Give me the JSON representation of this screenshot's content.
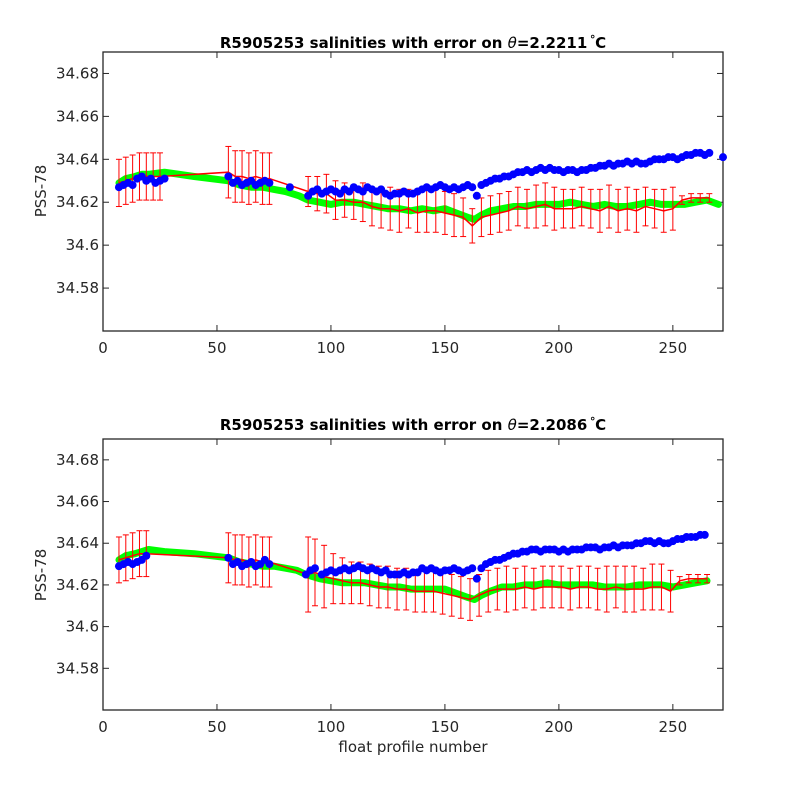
{
  "chart_data": [
    {
      "type": "scatter",
      "title": "R5905253 salinities with error on θ=2.2211°C",
      "title_prefix": "R5905253 salinities with error on ",
      "title_theta": "θ",
      "title_value": "=2.2211",
      "title_unit": "C",
      "ylabel": "PSS-78",
      "xlabel": "",
      "xlim": [
        0,
        272
      ],
      "ylim": [
        34.56,
        34.69
      ],
      "xticks": [
        "0",
        "50",
        "100",
        "150",
        "200",
        "250"
      ],
      "xtick_values": [
        0,
        50,
        100,
        150,
        200,
        250
      ],
      "yticks": [
        "34.58",
        "34.6",
        "34.62",
        "34.64",
        "34.66",
        "34.68"
      ],
      "ytick_values": [
        34.58,
        34.6,
        34.62,
        34.64,
        34.66,
        34.68
      ],
      "grid": false,
      "colors": {
        "float": "#0000ff",
        "calibrated": "#ff0000",
        "mapped": "#00ff00"
      },
      "float_salinity": {
        "x": [
          7,
          9,
          11,
          13,
          15,
          17,
          19,
          21,
          23,
          25,
          27,
          55,
          57,
          59,
          61,
          63,
          65,
          67,
          69,
          71,
          73,
          82,
          90,
          92,
          94,
          96,
          98,
          100,
          102,
          104,
          106,
          108,
          110,
          112,
          114,
          116,
          118,
          120,
          122,
          124,
          126,
          128,
          130,
          132,
          134,
          136,
          138,
          140,
          142,
          144,
          146,
          148,
          150,
          152,
          154,
          156,
          158,
          160,
          162,
          164,
          166,
          168,
          170,
          172,
          174,
          176,
          178,
          180,
          182,
          184,
          186,
          188,
          190,
          192,
          194,
          196,
          198,
          200,
          202,
          204,
          206,
          208,
          210,
          212,
          214,
          216,
          218,
          220,
          222,
          224,
          226,
          228,
          230,
          232,
          234,
          236,
          238,
          240,
          242,
          244,
          246,
          248,
          250,
          252,
          254,
          256,
          258,
          260,
          262,
          264,
          266,
          272
        ],
        "y": [
          34.627,
          34.628,
          34.629,
          34.628,
          34.631,
          34.632,
          34.63,
          34.631,
          34.629,
          34.63,
          34.631,
          34.632,
          34.629,
          34.63,
          34.628,
          34.629,
          34.63,
          34.628,
          34.629,
          34.63,
          34.629,
          34.627,
          34.623,
          34.625,
          34.626,
          34.624,
          34.625,
          34.626,
          34.625,
          34.624,
          34.626,
          34.625,
          34.627,
          34.626,
          34.625,
          34.627,
          34.626,
          34.625,
          34.626,
          34.624,
          34.623,
          34.624,
          34.624,
          34.625,
          34.624,
          34.624,
          34.625,
          34.626,
          34.627,
          34.626,
          34.627,
          34.628,
          34.627,
          34.626,
          34.627,
          34.626,
          34.627,
          34.628,
          34.627,
          34.623,
          34.628,
          34.629,
          34.63,
          34.631,
          34.631,
          34.632,
          34.632,
          34.633,
          34.634,
          34.634,
          34.635,
          34.634,
          34.635,
          34.636,
          34.635,
          34.636,
          34.635,
          34.635,
          34.634,
          34.635,
          34.635,
          34.634,
          34.635,
          34.635,
          34.636,
          34.636,
          34.637,
          34.637,
          34.638,
          34.637,
          34.638,
          34.638,
          34.639,
          34.638,
          34.639,
          34.638,
          34.638,
          34.639,
          34.64,
          34.64,
          34.64,
          34.641,
          34.641,
          34.64,
          34.641,
          34.642,
          34.642,
          34.643,
          34.643,
          34.642,
          34.643,
          34.641
        ]
      },
      "mapped_salinity": {
        "x": [
          7,
          10,
          14,
          17,
          20,
          27,
          40,
          55,
          60,
          65,
          70,
          75,
          80,
          86,
          90,
          95,
          100,
          105,
          110,
          115,
          120,
          125,
          130,
          135,
          140,
          145,
          150,
          155,
          160,
          163,
          166,
          170,
          175,
          180,
          185,
          190,
          195,
          200,
          205,
          210,
          215,
          220,
          225,
          230,
          235,
          240,
          245,
          250,
          255,
          260,
          265,
          270
        ],
        "y": [
          34.629,
          34.631,
          34.632,
          34.633,
          34.633,
          34.634,
          34.632,
          34.63,
          34.628,
          34.627,
          34.627,
          34.626,
          34.625,
          34.623,
          34.621,
          34.62,
          34.619,
          34.62,
          34.62,
          34.619,
          34.618,
          34.617,
          34.617,
          34.616,
          34.617,
          34.616,
          34.617,
          34.615,
          34.613,
          34.612,
          34.614,
          34.616,
          34.617,
          34.618,
          34.618,
          34.619,
          34.619,
          34.619,
          34.62,
          34.619,
          34.618,
          34.619,
          34.618,
          34.618,
          34.619,
          34.62,
          34.619,
          34.619,
          34.619,
          34.62,
          34.621,
          34.619
        ]
      },
      "calibrated_salinity": {
        "x": [
          7,
          10,
          13,
          16,
          19,
          22,
          25,
          55,
          58,
          61,
          64,
          67,
          70,
          73,
          90,
          94,
          98,
          102,
          106,
          110,
          114,
          118,
          122,
          126,
          130,
          134,
          138,
          142,
          146,
          150,
          154,
          158,
          162,
          166,
          170,
          174,
          178,
          182,
          186,
          190,
          194,
          198,
          202,
          206,
          210,
          214,
          218,
          222,
          226,
          230,
          234,
          238,
          242,
          246,
          250,
          254,
          258,
          262,
          266
        ],
        "y": [
          34.629,
          34.63,
          34.631,
          34.632,
          34.632,
          34.632,
          34.632,
          34.634,
          34.632,
          34.632,
          34.631,
          34.632,
          34.631,
          34.631,
          34.625,
          34.624,
          34.624,
          34.621,
          34.621,
          34.62,
          34.62,
          34.618,
          34.617,
          34.617,
          34.616,
          34.617,
          34.615,
          34.616,
          34.616,
          34.615,
          34.614,
          34.613,
          34.609,
          34.613,
          34.614,
          34.615,
          34.616,
          34.618,
          34.617,
          34.618,
          34.619,
          34.617,
          34.617,
          34.617,
          34.618,
          34.617,
          34.616,
          34.618,
          34.616,
          34.617,
          34.616,
          34.618,
          34.617,
          34.616,
          34.617,
          34.621,
          34.622,
          34.622,
          34.622
        ],
        "error": [
          0.011,
          0.011,
          0.011,
          0.011,
          0.011,
          0.011,
          0.011,
          0.012,
          0.012,
          0.012,
          0.012,
          0.012,
          0.012,
          0.012,
          0.007,
          0.008,
          0.009,
          0.009,
          0.008,
          0.008,
          0.009,
          0.009,
          0.009,
          0.01,
          0.01,
          0.009,
          0.009,
          0.01,
          0.01,
          0.01,
          0.01,
          0.009,
          0.008,
          0.009,
          0.009,
          0.009,
          0.009,
          0.009,
          0.009,
          0.01,
          0.01,
          0.01,
          0.009,
          0.009,
          0.009,
          0.009,
          0.01,
          0.01,
          0.01,
          0.01,
          0.01,
          0.009,
          0.009,
          0.01,
          0.01,
          0.002,
          0.002,
          0.002,
          0.002
        ]
      }
    },
    {
      "type": "scatter",
      "title": "R5905253 salinities with error on θ=2.2086°C",
      "title_prefix": "R5905253 salinities with error on ",
      "title_theta": "θ",
      "title_value": "=2.2086",
      "title_unit": "C",
      "ylabel": "PSS-78",
      "xlabel": "float profile number",
      "xlim": [
        0,
        272
      ],
      "ylim": [
        34.56,
        34.69
      ],
      "xticks": [
        "0",
        "50",
        "100",
        "150",
        "200",
        "250"
      ],
      "xtick_values": [
        0,
        50,
        100,
        150,
        200,
        250
      ],
      "yticks": [
        "34.58",
        "34.6",
        "34.62",
        "34.64",
        "34.66",
        "34.68"
      ],
      "ytick_values": [
        34.58,
        34.6,
        34.62,
        34.64,
        34.66,
        34.68
      ],
      "grid": false,
      "colors": {
        "float": "#0000ff",
        "calibrated": "#ff0000",
        "mapped": "#00ff00"
      },
      "float_salinity": {
        "x": [
          7,
          9,
          11,
          13,
          15,
          17,
          19,
          55,
          57,
          59,
          61,
          63,
          65,
          67,
          69,
          71,
          73,
          89,
          91,
          93,
          96,
          98,
          100,
          102,
          104,
          106,
          108,
          110,
          112,
          114,
          116,
          118,
          120,
          122,
          124,
          126,
          128,
          130,
          132,
          134,
          136,
          138,
          140,
          142,
          144,
          146,
          148,
          150,
          152,
          154,
          156,
          158,
          160,
          162,
          164,
          166,
          168,
          170,
          172,
          174,
          176,
          178,
          180,
          182,
          184,
          186,
          188,
          190,
          192,
          194,
          196,
          198,
          200,
          202,
          204,
          206,
          208,
          210,
          212,
          214,
          216,
          218,
          220,
          222,
          224,
          226,
          228,
          230,
          232,
          234,
          236,
          238,
          240,
          242,
          244,
          246,
          248,
          250,
          252,
          254,
          256,
          258,
          260,
          262,
          264
        ],
        "y": [
          34.629,
          34.63,
          34.631,
          34.63,
          34.631,
          34.632,
          34.634,
          34.633,
          34.63,
          34.631,
          34.629,
          34.63,
          34.631,
          34.629,
          34.63,
          34.632,
          34.63,
          34.625,
          34.627,
          34.628,
          34.625,
          34.626,
          34.627,
          34.626,
          34.627,
          34.628,
          34.627,
          34.628,
          34.629,
          34.628,
          34.627,
          34.628,
          34.627,
          34.626,
          34.627,
          34.625,
          34.625,
          34.625,
          34.626,
          34.625,
          34.626,
          34.626,
          34.628,
          34.627,
          34.628,
          34.627,
          34.626,
          34.627,
          34.627,
          34.628,
          34.627,
          34.626,
          34.627,
          34.628,
          34.623,
          34.628,
          34.63,
          34.631,
          34.632,
          34.632,
          34.633,
          34.634,
          34.635,
          34.635,
          34.636,
          34.636,
          34.637,
          34.637,
          34.636,
          34.637,
          34.637,
          34.637,
          34.636,
          34.637,
          34.636,
          34.637,
          34.637,
          34.637,
          34.638,
          34.638,
          34.638,
          34.637,
          34.638,
          34.638,
          34.639,
          34.638,
          34.639,
          34.639,
          34.639,
          34.64,
          34.64,
          34.641,
          34.641,
          34.64,
          34.641,
          34.64,
          34.64,
          34.641,
          34.642,
          34.642,
          34.643,
          34.643,
          34.643,
          34.644,
          34.644
        ]
      },
      "mapped_salinity": {
        "x": [
          7,
          10,
          14,
          17,
          20,
          27,
          40,
          55,
          60,
          65,
          70,
          75,
          80,
          85,
          89,
          95,
          100,
          105,
          110,
          115,
          120,
          125,
          130,
          135,
          140,
          145,
          150,
          155,
          160,
          163,
          166,
          170,
          175,
          180,
          185,
          190,
          195,
          200,
          205,
          210,
          215,
          220,
          225,
          230,
          235,
          240,
          245,
          250,
          255,
          260,
          265
        ],
        "y": [
          34.632,
          34.634,
          34.635,
          34.636,
          34.637,
          34.636,
          34.635,
          34.633,
          34.631,
          34.63,
          34.629,
          34.629,
          34.628,
          34.627,
          34.625,
          34.623,
          34.622,
          34.621,
          34.621,
          34.621,
          34.62,
          34.619,
          34.619,
          34.618,
          34.618,
          34.618,
          34.618,
          34.616,
          34.614,
          34.613,
          34.615,
          34.617,
          34.619,
          34.619,
          34.62,
          34.62,
          34.621,
          34.62,
          34.62,
          34.62,
          34.62,
          34.619,
          34.619,
          34.619,
          34.62,
          34.62,
          34.62,
          34.619,
          34.62,
          34.621,
          34.622
        ]
      },
      "calibrated_salinity": {
        "x": [
          7,
          10,
          13,
          16,
          19,
          55,
          58,
          61,
          64,
          67,
          70,
          73,
          90,
          93,
          97,
          101,
          105,
          109,
          113,
          117,
          121,
          125,
          129,
          133,
          137,
          141,
          145,
          149,
          153,
          157,
          161,
          165,
          169,
          173,
          177,
          181,
          185,
          189,
          193,
          197,
          201,
          205,
          209,
          213,
          217,
          221,
          225,
          229,
          233,
          237,
          241,
          245,
          249,
          253,
          257,
          261,
          265
        ],
        "y": [
          34.632,
          34.633,
          34.634,
          34.635,
          34.635,
          34.633,
          34.632,
          34.632,
          34.631,
          34.632,
          34.631,
          34.631,
          34.625,
          34.626,
          34.624,
          34.623,
          34.622,
          34.621,
          34.621,
          34.62,
          34.619,
          34.619,
          34.618,
          34.618,
          34.617,
          34.617,
          34.617,
          34.616,
          34.615,
          34.614,
          34.613,
          34.615,
          34.617,
          34.618,
          34.618,
          34.618,
          34.619,
          34.618,
          34.619,
          34.619,
          34.619,
          34.618,
          34.619,
          34.619,
          34.618,
          34.618,
          34.619,
          34.618,
          34.618,
          34.618,
          34.619,
          34.619,
          34.617,
          34.622,
          34.623,
          34.623,
          34.623
        ],
        "error": [
          0.011,
          0.011,
          0.011,
          0.011,
          0.011,
          0.012,
          0.012,
          0.012,
          0.012,
          0.012,
          0.012,
          0.012,
          0.018,
          0.016,
          0.015,
          0.012,
          0.011,
          0.01,
          0.01,
          0.01,
          0.01,
          0.01,
          0.01,
          0.01,
          0.01,
          0.01,
          0.01,
          0.01,
          0.01,
          0.01,
          0.01,
          0.01,
          0.01,
          0.01,
          0.011,
          0.01,
          0.01,
          0.01,
          0.01,
          0.01,
          0.01,
          0.01,
          0.01,
          0.01,
          0.01,
          0.011,
          0.01,
          0.011,
          0.011,
          0.01,
          0.011,
          0.011,
          0.01,
          0.002,
          0.002,
          0.002,
          0.002
        ]
      }
    }
  ]
}
